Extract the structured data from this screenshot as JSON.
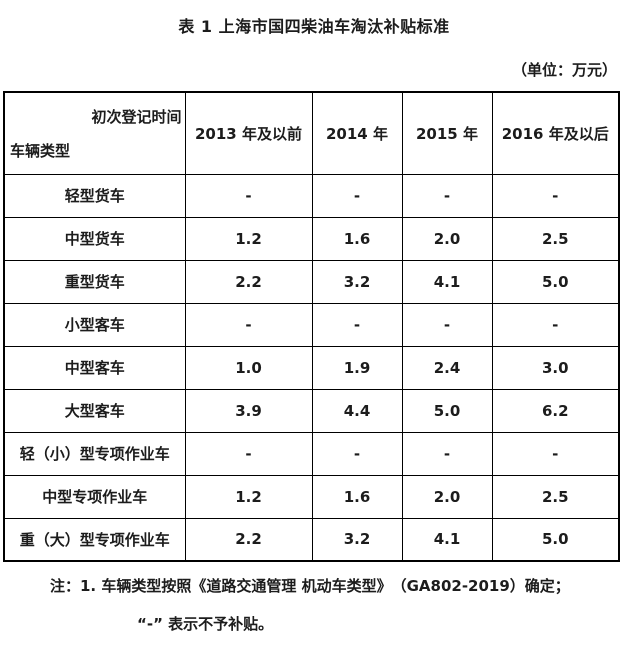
{
  "page": {
    "title": "表 1 上海市国四柴油车淘汰补贴标准",
    "unit_label": "（单位：万元）"
  },
  "table": {
    "corner": {
      "top_right": "初次登记时间",
      "bottom_left": "车辆类型"
    },
    "columns": [
      "2013 年及以前",
      "2014 年",
      "2015 年",
      "2016 年及以后"
    ],
    "rows": [
      {
        "label": "轻型货车",
        "values": [
          "-",
          "-",
          "-",
          "-"
        ]
      },
      {
        "label": "中型货车",
        "values": [
          "1.2",
          "1.6",
          "2.0",
          "2.5"
        ]
      },
      {
        "label": "重型货车",
        "values": [
          "2.2",
          "3.2",
          "4.1",
          "5.0"
        ]
      },
      {
        "label": "小型客车",
        "values": [
          "-",
          "-",
          "-",
          "-"
        ]
      },
      {
        "label": "中型客车",
        "values": [
          "1.0",
          "1.9",
          "2.4",
          "3.0"
        ]
      },
      {
        "label": "大型客车",
        "values": [
          "3.9",
          "4.4",
          "5.0",
          "6.2"
        ]
      },
      {
        "label": "轻（小）型专项作业车",
        "values": [
          "-",
          "-",
          "-",
          "-"
        ]
      },
      {
        "label": "中型专项作业车",
        "values": [
          "1.2",
          "1.6",
          "2.0",
          "2.5"
        ]
      },
      {
        "label": "重（大）型专项作业车",
        "values": [
          "2.2",
          "3.2",
          "4.1",
          "5.0"
        ]
      }
    ]
  },
  "notes": {
    "line1": "注：1. 车辆类型按照《道路交通管理 机动车类型》　（GA802-2019）确定；",
    "line2": "“-” 表示不予补贴。"
  }
}
